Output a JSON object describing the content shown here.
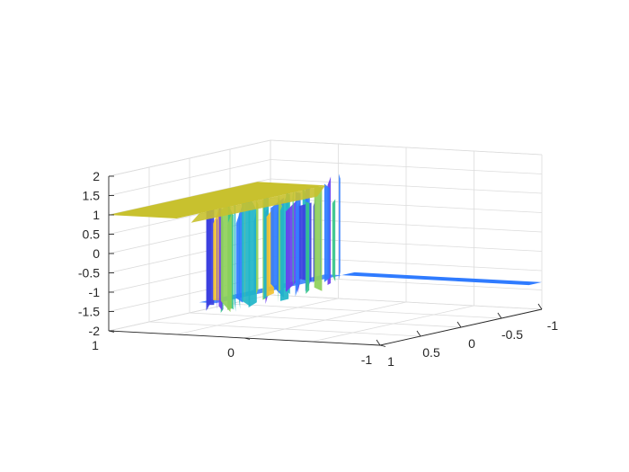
{
  "chart_data": {
    "type": "surface",
    "title": "",
    "xlabel": "",
    "ylabel": "",
    "zlabel": "",
    "grid": true,
    "view": "3d",
    "xlim": [
      -1,
      1
    ],
    "ylim": [
      -1,
      1
    ],
    "zlim": [
      -2,
      2
    ],
    "x_ticks": [
      1,
      0.5,
      0,
      -0.5,
      -1
    ],
    "x_tick_labels": [
      "1",
      "0.5",
      "0",
      "-0.5",
      "-1"
    ],
    "y_ticks": [
      1,
      0,
      -1
    ],
    "y_tick_labels": [
      "1",
      "0",
      "-1"
    ],
    "z_ticks": [
      2,
      1.5,
      1,
      0.5,
      0,
      -0.5,
      -1,
      -1.5,
      -2
    ],
    "z_tick_labels": [
      "2",
      "1.5",
      "1",
      "0.5",
      "0",
      "-0.5",
      "-1",
      "-1.5",
      "-2"
    ],
    "surface": {
      "upper_plateau_z": 1,
      "lower_plateau_z": -1.3,
      "upper_color": "#c8c12e",
      "lower_color": "#2f7bff",
      "spike_colors": [
        "#f2c230",
        "#3b3fe0",
        "#35c48a",
        "#20b5c8",
        "#8ed05a",
        "#2f7bff",
        "#6a3ff0"
      ]
    }
  }
}
